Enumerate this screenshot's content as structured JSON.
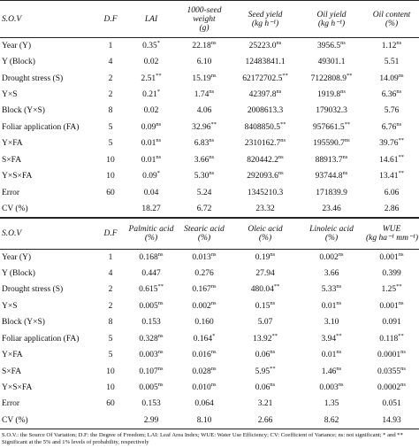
{
  "tables": [
    {
      "columns": [
        [
          "S.O.V"
        ],
        [
          "D.F"
        ],
        [
          "LAI"
        ],
        [
          "1000-seed",
          "weight",
          "(g)"
        ],
        [
          "Seed yield",
          "(kg h⁻¹)"
        ],
        [
          "Oil yield",
          "(kg h⁻¹)"
        ],
        [
          "Oil content",
          "(%)"
        ]
      ],
      "rows": [
        [
          "Year (Y)",
          "1",
          [
            "0.35",
            "*"
          ],
          [
            "22.18",
            "ns"
          ],
          [
            "25223.0",
            "ns"
          ],
          [
            "3956.5",
            "ns"
          ],
          [
            "1.12",
            "ns"
          ]
        ],
        [
          "Y (Block)",
          "4",
          "0.02",
          "6.10",
          "12483841.1",
          "49301.1",
          "5.51"
        ],
        [
          "Drought stress (S)",
          "2",
          [
            "2.51",
            "**"
          ],
          [
            "15.19",
            "ns"
          ],
          [
            "62172702.5",
            "**"
          ],
          [
            "7122808.9",
            "**"
          ],
          [
            "14.09",
            "ns"
          ]
        ],
        [
          "Y×S",
          "2",
          [
            "0.21",
            "*"
          ],
          [
            "1.74",
            "ns"
          ],
          [
            "42397.8",
            "ns"
          ],
          [
            "1919.8",
            "ns"
          ],
          [
            "6.36",
            "ns"
          ]
        ],
        [
          "Block (Y×S)",
          "8",
          "0.02",
          "4.06",
          "2008613.3",
          "179032.3",
          "5.76"
        ],
        [
          "Foliar application (FA)",
          "5",
          [
            "0.09",
            "ns"
          ],
          [
            "32.96",
            "**"
          ],
          [
            "8408850.5",
            "**"
          ],
          [
            "957661.5",
            "**"
          ],
          [
            "6.76",
            "ns"
          ]
        ],
        [
          "Y×FA",
          "5",
          [
            "0.01",
            "ns"
          ],
          [
            "6.83",
            "ns"
          ],
          [
            "2310162.7",
            "ns"
          ],
          [
            "195590.7",
            "ns"
          ],
          [
            "39.76",
            "**"
          ]
        ],
        [
          "S×FA",
          "10",
          [
            "0.01",
            "ns"
          ],
          [
            "3.66",
            "ns"
          ],
          [
            "820442.2",
            "ns"
          ],
          [
            "88913.7",
            "ns"
          ],
          [
            "14.61",
            "**"
          ]
        ],
        [
          "Y×S×FA",
          "10",
          [
            "0.09",
            "*"
          ],
          [
            "5.30",
            "ns"
          ],
          [
            "292093.6",
            "ns"
          ],
          [
            "93744.8",
            "ns"
          ],
          [
            "13.41",
            "**"
          ]
        ],
        [
          "Error",
          "60",
          "0.04",
          "5.24",
          "1345210.3",
          "171839.9",
          "6.06"
        ],
        [
          "CV (%)",
          null,
          "18.27",
          "6.72",
          "23.32",
          "23.46",
          "2.86"
        ]
      ]
    },
    {
      "columns": [
        [
          "S.O.V"
        ],
        [
          "D.F"
        ],
        [
          "Palmitic acid",
          "(%)"
        ],
        [
          "Stearic acid",
          "(%)"
        ],
        [
          "Oleic acid",
          "(%)"
        ],
        [
          "Linoleic acid",
          "(%)"
        ],
        [
          "WUE",
          "(kg ha⁻¹ mm⁻¹)"
        ]
      ],
      "rows": [
        [
          "Year (Y)",
          "1",
          [
            "0.168",
            "ns"
          ],
          [
            "0.013",
            "ns"
          ],
          [
            "0.19",
            "ns"
          ],
          [
            "0.002",
            "ns"
          ],
          [
            "0.001",
            "ns"
          ]
        ],
        [
          "Y (Block)",
          "4",
          "0.447",
          "0.276",
          "27.94",
          "3.66",
          "0.399"
        ],
        [
          "Drought stress (S)",
          "2",
          [
            "0.615",
            "**"
          ],
          [
            "0.167",
            "ns"
          ],
          [
            "480.04",
            "**"
          ],
          [
            "5.33",
            "ns"
          ],
          [
            "1.25",
            "**"
          ]
        ],
        [
          "Y×S",
          "2",
          [
            "0.005",
            "ns"
          ],
          [
            "0.002",
            "ns"
          ],
          [
            "0.15",
            "ns"
          ],
          [
            "0.01",
            "ns"
          ],
          [
            "0.001",
            "ns"
          ]
        ],
        [
          "Block (Y×S)",
          "8",
          "0.153",
          "0.160",
          "5.07",
          "3.10",
          "0.091"
        ],
        [
          "Foliar application (FA)",
          "5",
          [
            "0.328",
            "ns"
          ],
          [
            "0.164",
            "*"
          ],
          [
            "13.92",
            "**"
          ],
          [
            "3.94",
            "**"
          ],
          [
            "0.118",
            "**"
          ]
        ],
        [
          "Y×FA",
          "5",
          [
            "0.003",
            "ns"
          ],
          [
            "0.016",
            "ns"
          ],
          [
            "0.06",
            "ns"
          ],
          [
            "0.01",
            "ns"
          ],
          [
            "0.0001",
            "ns"
          ]
        ],
        [
          "S×FA",
          "10",
          [
            "0.107",
            "ns"
          ],
          [
            "0.028",
            "ns"
          ],
          [
            "5.95",
            "**"
          ],
          [
            "1.46",
            "ns"
          ],
          [
            "0.0355",
            "ns"
          ]
        ],
        [
          "Y×S×FA",
          "10",
          [
            "0.005",
            "ns"
          ],
          [
            "0.010",
            "ns"
          ],
          [
            "0.06",
            "ns"
          ],
          [
            "0.003",
            "ns"
          ],
          [
            "0.0002",
            "ns"
          ]
        ],
        [
          "Error",
          "60",
          "0.153",
          "0.064",
          "3.21",
          "1.35",
          "0.051"
        ],
        [
          "CV (%)",
          null,
          "2.99",
          "8.10",
          "2.66",
          "8.62",
          "14.93"
        ]
      ]
    }
  ],
  "footnote": "S.O.V.: the Source Of Variation; D.F: the Degree of Freedom; LAI: Leaf Area Index; WUE: Water Use Efficiency; CV: Coefficient of Variance; ns: not significant; * and ** Significant at the 5% and 1% levels of probability, respectively"
}
